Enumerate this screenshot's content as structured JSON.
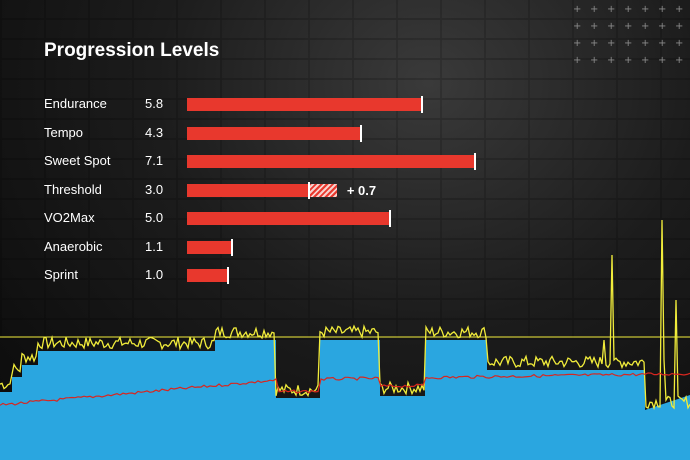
{
  "title": "Progression Levels",
  "colors": {
    "bar": "#e8382d",
    "bar_cap": "#ffffff",
    "workout_fill": "#2aa6e0",
    "power_line": "#f1ec3b",
    "heart_rate_line": "#d8261f",
    "ftp_line": "#f1ec3b"
  },
  "max_level": 10,
  "levels": [
    {
      "label": "Endurance",
      "value": "5.8"
    },
    {
      "label": "Tempo",
      "value": "4.3"
    },
    {
      "label": "Sweet Spot",
      "value": "7.1"
    },
    {
      "label": "Threshold",
      "value": "3.0",
      "delta": "+ 0.7",
      "delta_value": 0.7
    },
    {
      "label": "VO2Max",
      "value": "5.0"
    },
    {
      "label": "Anaerobic",
      "value": "1.1"
    },
    {
      "label": "Sprint",
      "value": "1.0"
    }
  ]
}
